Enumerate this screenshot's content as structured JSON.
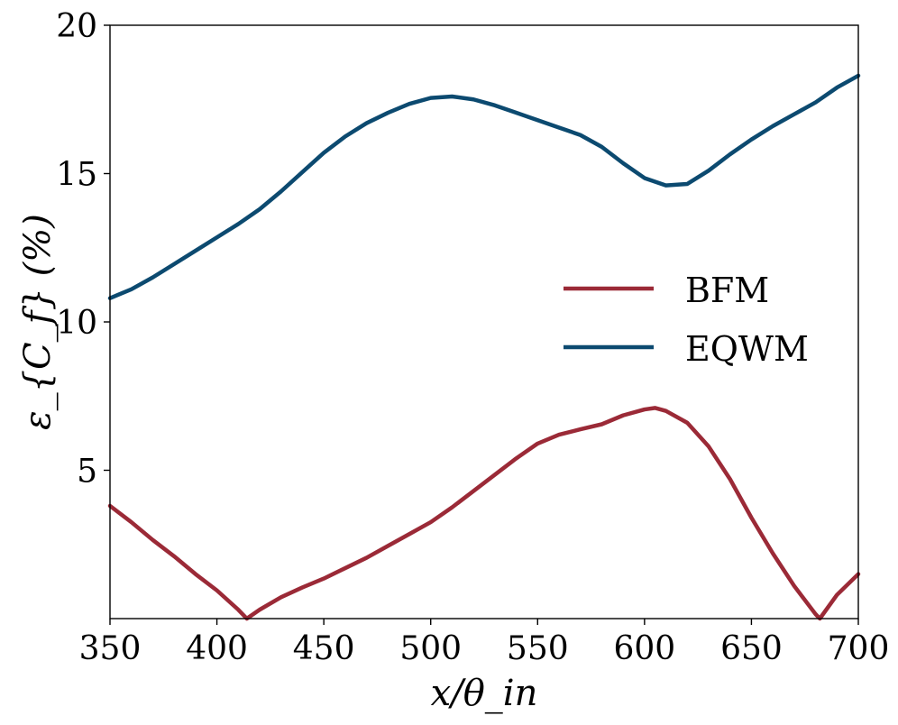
{
  "chart_data": {
    "type": "line",
    "title": "",
    "xlabel": "x/θ_in",
    "ylabel": "ε_{C_f} (%)",
    "xlim": [
      350,
      700
    ],
    "ylim": [
      0,
      20
    ],
    "xticks": [
      350,
      400,
      450,
      500,
      550,
      600,
      650,
      700
    ],
    "yticks": [
      5,
      10,
      15,
      20
    ],
    "grid": false,
    "legend_position": "center-right",
    "series": [
      {
        "name": "BFM",
        "color": "#9b2a37",
        "x": [
          350,
          360,
          370,
          380,
          390,
          400,
          410,
          414,
          420,
          430,
          440,
          450,
          460,
          470,
          480,
          490,
          500,
          510,
          520,
          530,
          540,
          550,
          560,
          570,
          580,
          590,
          600,
          605,
          610,
          620,
          630,
          640,
          650,
          660,
          670,
          680,
          682,
          690,
          700
        ],
        "y": [
          3.8,
          3.25,
          2.65,
          2.1,
          1.5,
          0.95,
          0.3,
          0.0,
          0.3,
          0.72,
          1.05,
          1.35,
          1.7,
          2.05,
          2.45,
          2.85,
          3.25,
          3.75,
          4.3,
          4.85,
          5.4,
          5.9,
          6.2,
          6.38,
          6.55,
          6.85,
          7.05,
          7.1,
          7.0,
          6.6,
          5.8,
          4.7,
          3.4,
          2.2,
          1.1,
          0.15,
          0.0,
          0.8,
          1.5
        ]
      },
      {
        "name": "EQWM",
        "color": "#0c4a70",
        "x": [
          350,
          360,
          370,
          380,
          390,
          400,
          410,
          420,
          430,
          440,
          450,
          460,
          470,
          480,
          490,
          500,
          510,
          520,
          530,
          540,
          550,
          560,
          570,
          580,
          590,
          600,
          610,
          620,
          630,
          640,
          650,
          660,
          670,
          680,
          690,
          700
        ],
        "y": [
          10.8,
          11.1,
          11.5,
          11.95,
          12.4,
          12.85,
          13.3,
          13.8,
          14.4,
          15.05,
          15.7,
          16.25,
          16.7,
          17.05,
          17.35,
          17.55,
          17.6,
          17.5,
          17.3,
          17.05,
          16.8,
          16.55,
          16.3,
          15.9,
          15.35,
          14.85,
          14.6,
          14.65,
          15.1,
          15.65,
          16.15,
          16.6,
          17.0,
          17.4,
          17.9,
          18.3
        ]
      }
    ]
  }
}
